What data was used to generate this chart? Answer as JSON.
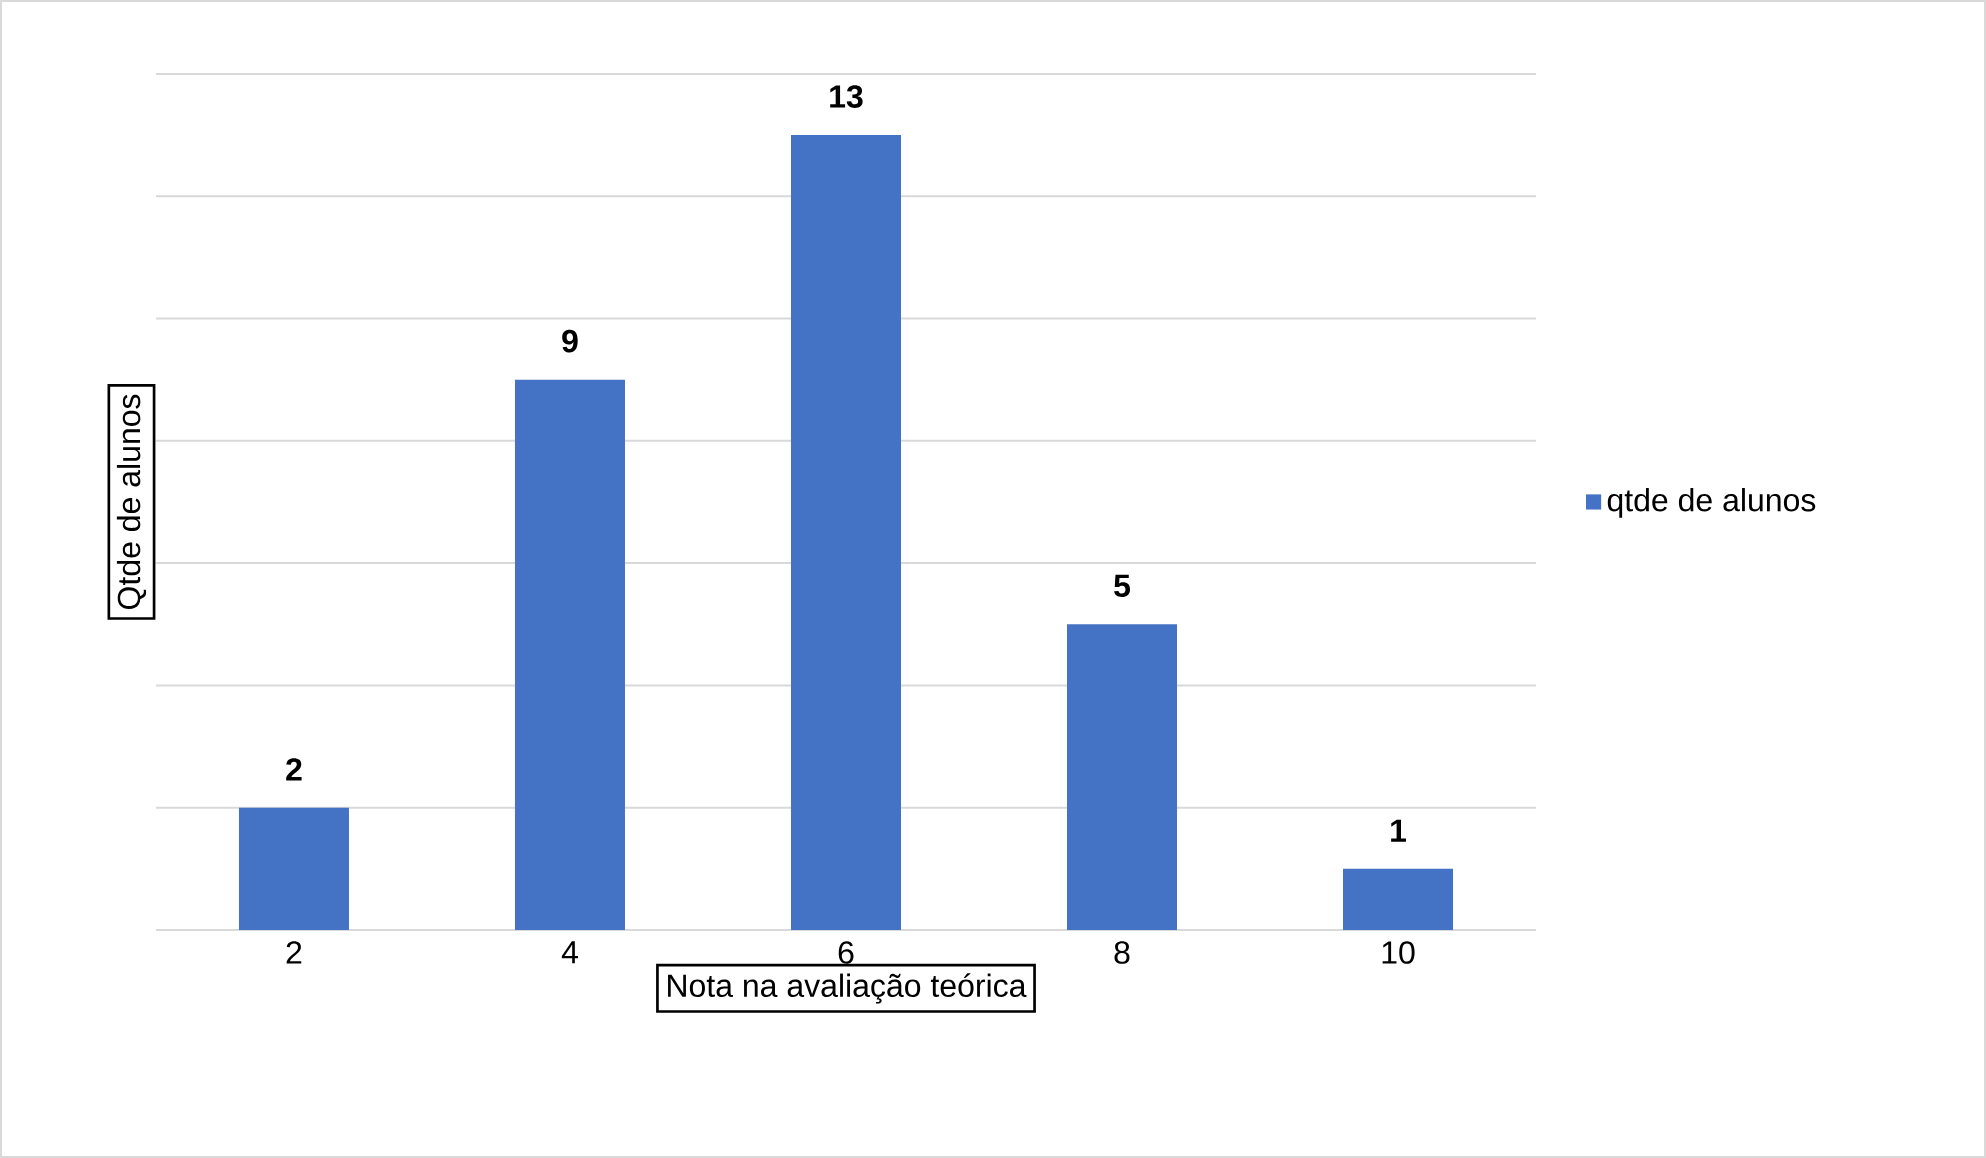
{
  "chart_data": {
    "type": "bar",
    "xlabel": "Nota na avaliação teórica",
    "ylabel": "Qtde de alunos",
    "categories": [
      "2",
      "4",
      "6",
      "8",
      "10"
    ],
    "series": [
      {
        "name": "qtde de alunos",
        "color": "#4472c4",
        "values": [
          2,
          9,
          13,
          5,
          1
        ]
      }
    ],
    "ylim": [
      0,
      14
    ],
    "yticks": [
      {
        "value": 0,
        "label": null
      },
      {
        "value": 2,
        "label": null
      },
      {
        "value": 4,
        "label": null
      },
      {
        "value": 6,
        "label": null
      },
      {
        "value": 8,
        "label": null
      },
      {
        "value": 10,
        "label": null
      },
      {
        "value": 12,
        "label": null
      },
      {
        "value": 14,
        "label": null
      }
    ],
    "grid": "y",
    "legend": "right",
    "tick_labels": "x",
    "data_labels": true
  }
}
